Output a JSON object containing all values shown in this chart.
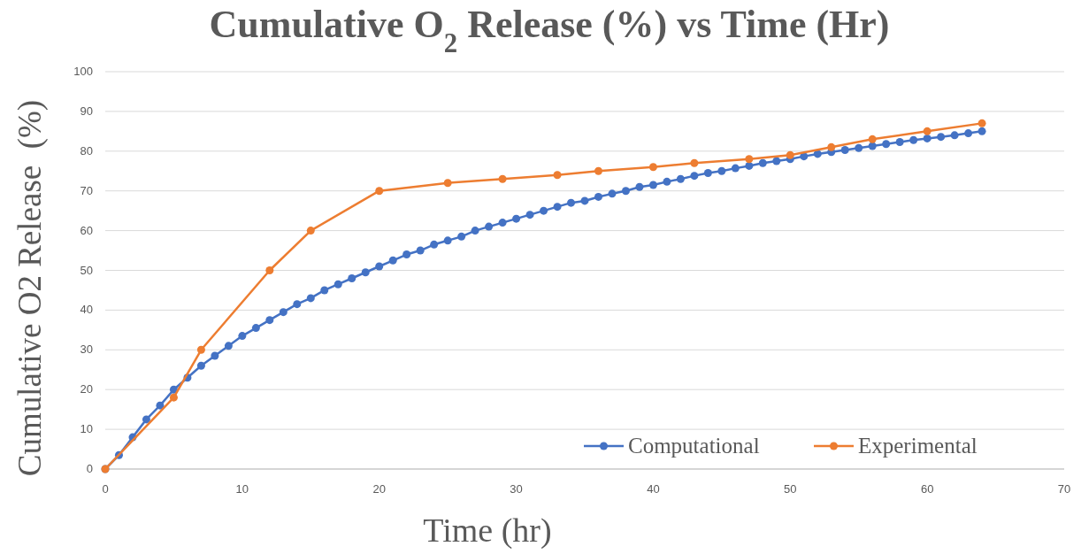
{
  "chart_data": {
    "type": "line",
    "title": "Cumulative O$_{2}$ Release (%) vs Time (Hr)",
    "xlabel": "Time (hr)",
    "ylabel": "Cumulative O2 Release  (%)",
    "xlim": [
      0,
      70
    ],
    "xticks": [
      0,
      10,
      20,
      30,
      40,
      50,
      60,
      70
    ],
    "ylim": [
      0,
      100
    ],
    "yticks": [
      0,
      10,
      20,
      30,
      40,
      50,
      60,
      70,
      80,
      90,
      100
    ],
    "grid": "y",
    "legend": "bottom right",
    "marker": "circle",
    "line_style": "solid",
    "series": [
      {
        "name": "Computational",
        "color": "#4472c4",
        "x": [
          0,
          1,
          2,
          3,
          4,
          5,
          6,
          7,
          8,
          9,
          10,
          11,
          12,
          13,
          14,
          15,
          16,
          17,
          18,
          19,
          20,
          21,
          22,
          23,
          24,
          25,
          26,
          27,
          28,
          29,
          30,
          31,
          32,
          33,
          34,
          35,
          36,
          37,
          38,
          39,
          40,
          41,
          42,
          43,
          44,
          45,
          46,
          47,
          48,
          49,
          50,
          51,
          52,
          53,
          54,
          55,
          56,
          57,
          58,
          59,
          60,
          61,
          62,
          63,
          64
        ],
        "values": [
          0,
          3.5,
          8,
          12.5,
          16,
          20,
          23,
          26,
          28.5,
          31,
          33.5,
          35.5,
          37.5,
          39.5,
          41.5,
          43,
          45,
          46.5,
          48,
          49.5,
          51,
          52.5,
          54,
          55,
          56.5,
          57.5,
          58.5,
          60,
          61,
          62,
          63,
          64,
          65,
          66,
          67,
          67.5,
          68.5,
          69.3,
          70,
          71,
          71.5,
          72.3,
          73,
          73.8,
          74.5,
          75,
          75.7,
          76.3,
          77,
          77.5,
          78,
          78.7,
          79.3,
          79.8,
          80.3,
          80.8,
          81.3,
          81.8,
          82.3,
          82.8,
          83.2,
          83.6,
          84,
          84.5,
          85
        ]
      },
      {
        "name": "Experimental",
        "color": "#ed7d31",
        "x": [
          0,
          5,
          7,
          12,
          15,
          20,
          25,
          29,
          33,
          36,
          40,
          43,
          47,
          50,
          53,
          56,
          60,
          64
        ],
        "values": [
          0,
          18,
          30,
          50,
          60,
          70,
          72,
          73,
          74,
          75,
          76,
          77,
          78,
          79,
          81,
          83,
          85,
          87
        ]
      }
    ]
  }
}
